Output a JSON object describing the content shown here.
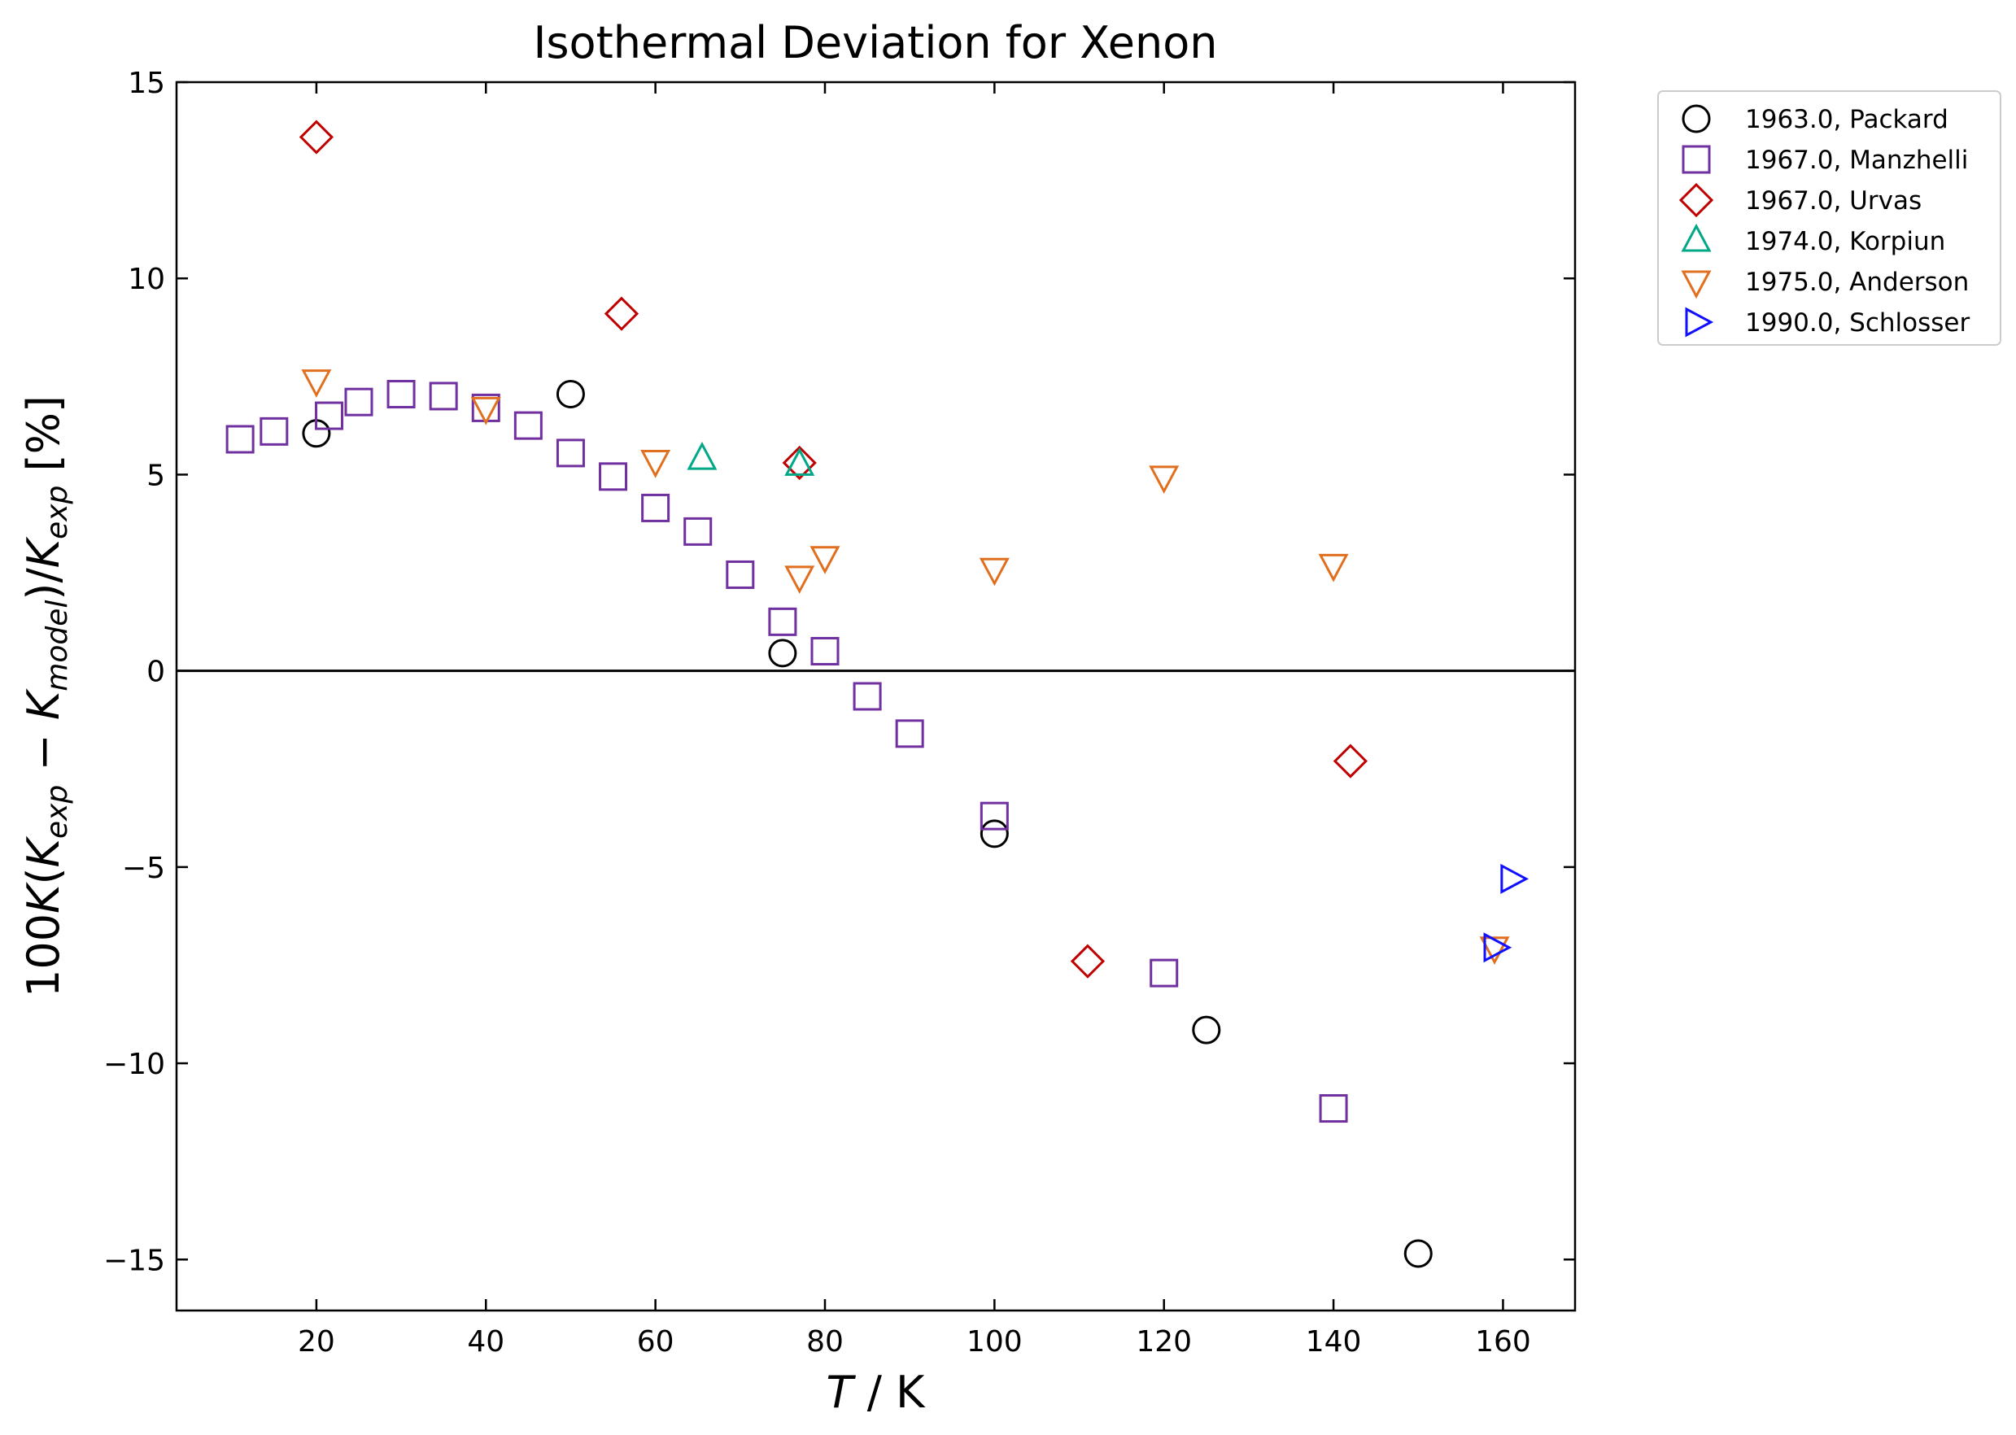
{
  "chart_data": {
    "type": "scatter",
    "title": "Isothermal Deviation for Xenon",
    "xlabel": "T / K",
    "ylabel": "100K(K_exp − K_model)/K_exp [%]",
    "xlim": [
      3.5,
      168.5
    ],
    "ylim": [
      -16.3,
      15
    ],
    "xticks": [
      20,
      40,
      60,
      80,
      100,
      120,
      140,
      160
    ],
    "yticks": [
      -15,
      -10,
      -5,
      0,
      5,
      10,
      15
    ],
    "ytick_labels": [
      "−15",
      "−10",
      "−5",
      "0",
      "5",
      "10",
      "15"
    ],
    "zero_line": true,
    "grid": false,
    "legend_position": "outside-top-right",
    "series": [
      {
        "name": "1963.0, Packard",
        "marker": "circle",
        "color": "#000000",
        "points": [
          [
            20,
            6.05
          ],
          [
            50,
            7.05
          ],
          [
            75,
            0.45
          ],
          [
            100,
            -4.15
          ],
          [
            125,
            -9.15
          ],
          [
            150,
            -14.85
          ]
        ]
      },
      {
        "name": "1967.0, Manzhelli",
        "marker": "square",
        "color": "#7030a0",
        "points": [
          [
            11,
            5.9
          ],
          [
            15,
            6.1
          ],
          [
            21.5,
            6.5
          ],
          [
            25,
            6.85
          ],
          [
            30,
            7.05
          ],
          [
            35,
            7.0
          ],
          [
            40,
            6.7
          ],
          [
            45,
            6.25
          ],
          [
            50,
            5.55
          ],
          [
            55,
            4.95
          ],
          [
            60,
            4.15
          ],
          [
            65,
            3.55
          ],
          [
            70,
            2.45
          ],
          [
            75,
            1.25
          ],
          [
            80,
            0.5
          ],
          [
            85,
            -0.65
          ],
          [
            90,
            -1.6
          ],
          [
            100,
            -3.7
          ],
          [
            120,
            -7.7
          ],
          [
            140,
            -11.15
          ]
        ]
      },
      {
        "name": "1967.0, Urvas",
        "marker": "diamond",
        "color": "#c00000",
        "points": [
          [
            20,
            13.6
          ],
          [
            56,
            9.1
          ],
          [
            77,
            5.3
          ],
          [
            111,
            -7.4
          ],
          [
            142,
            -2.3
          ]
        ]
      },
      {
        "name": "1974.0, Korpiun",
        "marker": "triangle-up",
        "color": "#00a888",
        "points": [
          [
            65.5,
            5.4
          ],
          [
            77,
            5.25
          ]
        ]
      },
      {
        "name": "1975.0, Anderson",
        "marker": "triangle-down",
        "color": "#e07020",
        "points": [
          [
            20,
            7.4
          ],
          [
            40,
            6.7
          ],
          [
            60,
            5.35
          ],
          [
            77,
            2.4
          ],
          [
            80,
            2.9
          ],
          [
            100,
            2.6
          ],
          [
            120,
            4.95
          ],
          [
            140,
            2.7
          ],
          [
            159,
            -7.05
          ]
        ]
      },
      {
        "name": "1990.0, Schlosser",
        "marker": "triangle-right",
        "color": "#1010ff",
        "points": [
          [
            159,
            -7.05
          ],
          [
            161,
            -5.3
          ]
        ]
      }
    ]
  }
}
